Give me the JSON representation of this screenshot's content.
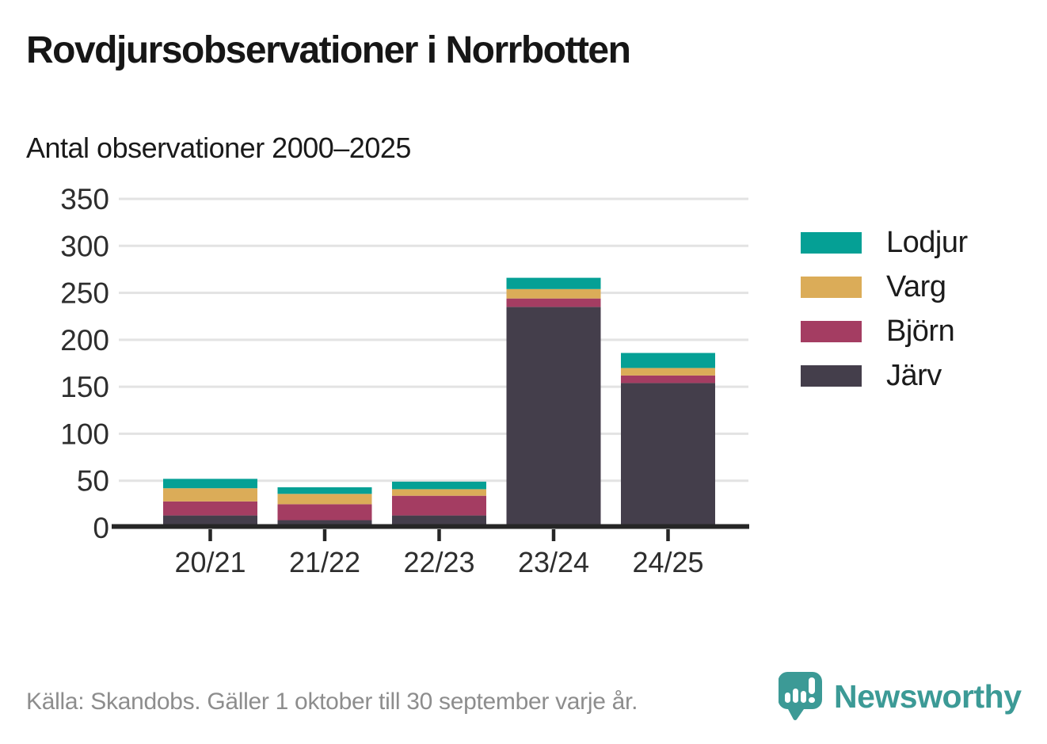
{
  "title": "Rovdjursobservationer i Norrbotten",
  "subtitle": "Antal observationer 2000–2025",
  "chart_data": {
    "type": "bar",
    "stacked": true,
    "title": "Rovdjursobservationer i Norrbotten",
    "subtitle": "Antal observationer 2000–2025",
    "categories": [
      "20/21",
      "21/22",
      "22/23",
      "23/24",
      "24/25"
    ],
    "series": [
      {
        "name": "Järv",
        "color": "#443e4b",
        "values": [
          13,
          8,
          13,
          235,
          154
        ]
      },
      {
        "name": "Björn",
        "color": "#a43d62",
        "values": [
          15,
          17,
          21,
          9,
          8
        ]
      },
      {
        "name": "Varg",
        "color": "#dbac58",
        "values": [
          14,
          11,
          7,
          10,
          8
        ]
      },
      {
        "name": "Lodjur",
        "color": "#05a095",
        "values": [
          10,
          7,
          8,
          12,
          16
        ]
      }
    ],
    "totals": [
      52,
      43,
      49,
      266,
      186
    ],
    "legend_order": [
      "Lodjur",
      "Varg",
      "Björn",
      "Järv"
    ],
    "legend_position": "right",
    "ylim": [
      0,
      350
    ],
    "yticks": [
      0,
      50,
      100,
      150,
      200,
      250,
      300,
      350
    ],
    "grid": true,
    "gridline_color": "#e3e3e3",
    "axis_color": "#262626",
    "label_color": "#2e2e2e"
  },
  "footer": {
    "source": "Källa: Skandobs. Gäller 1 oktober till 30 september varje år.",
    "brand": "Newsworthy",
    "brand_color": "#3c9a96"
  }
}
